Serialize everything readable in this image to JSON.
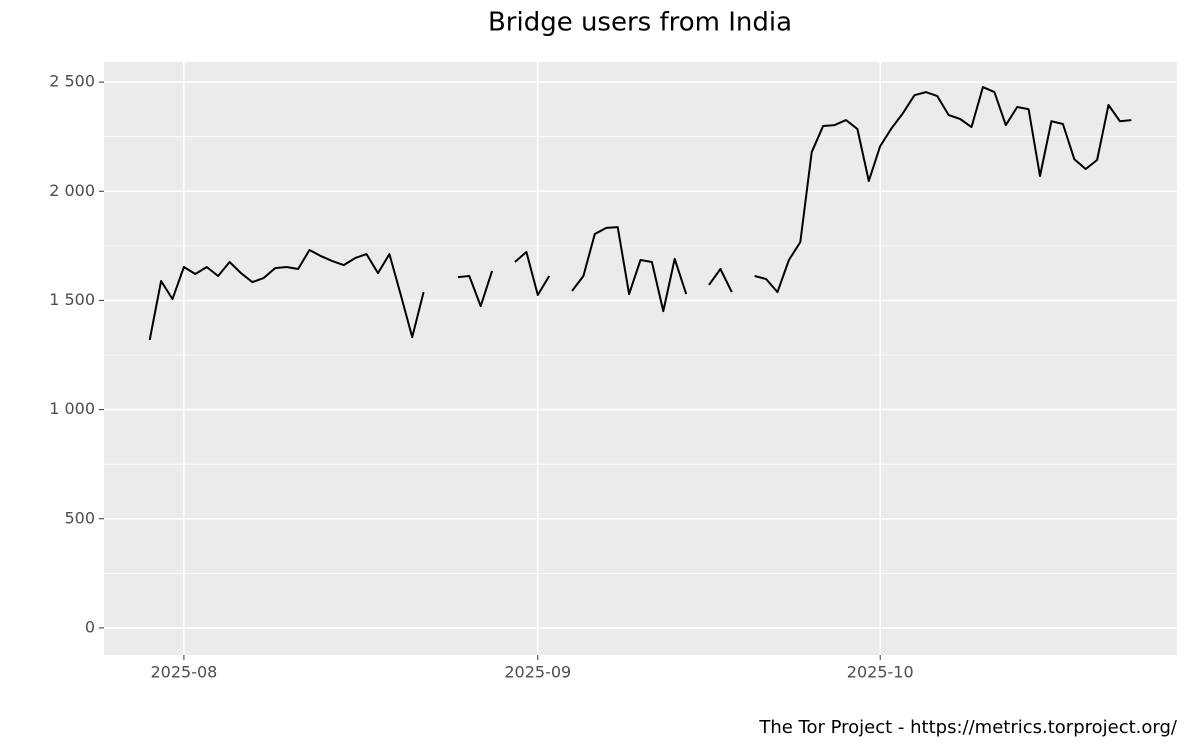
{
  "chart_data": {
    "type": "line",
    "title": "Bridge users from India",
    "caption": "The Tor Project - https://metrics.torproject.org/",
    "x": [
      "2025-07-29",
      "2025-07-30",
      "2025-07-31",
      "2025-08-01",
      "2025-08-02",
      "2025-08-03",
      "2025-08-04",
      "2025-08-05",
      "2025-08-06",
      "2025-08-07",
      "2025-08-08",
      "2025-08-09",
      "2025-08-10",
      "2025-08-11",
      "2025-08-12",
      "2025-08-13",
      "2025-08-14",
      "2025-08-15",
      "2025-08-16",
      "2025-08-17",
      "2025-08-18",
      "2025-08-19",
      "2025-08-20",
      "2025-08-21",
      "2025-08-22",
      "2025-08-23",
      "2025-08-24",
      "2025-08-25",
      "2025-08-26",
      "2025-08-27",
      "2025-08-28",
      "2025-08-29",
      "2025-08-30",
      "2025-08-31",
      "2025-09-01",
      "2025-09-02",
      "2025-09-03",
      "2025-09-04",
      "2025-09-05",
      "2025-09-06",
      "2025-09-07",
      "2025-09-08",
      "2025-09-09",
      "2025-09-10",
      "2025-09-11",
      "2025-09-12",
      "2025-09-13",
      "2025-09-14",
      "2025-09-15",
      "2025-09-16",
      "2025-09-17",
      "2025-09-18",
      "2025-09-19",
      "2025-09-20",
      "2025-09-21",
      "2025-09-22",
      "2025-09-23",
      "2025-09-24",
      "2025-09-25",
      "2025-09-26",
      "2025-09-27",
      "2025-09-28",
      "2025-09-29",
      "2025-09-30",
      "2025-10-01",
      "2025-10-02",
      "2025-10-03",
      "2025-10-04",
      "2025-10-05",
      "2025-10-06",
      "2025-10-07",
      "2025-10-08",
      "2025-10-09",
      "2025-10-10",
      "2025-10-11",
      "2025-10-12",
      "2025-10-13",
      "2025-10-14",
      "2025-10-15",
      "2025-10-16",
      "2025-10-17",
      "2025-10-18",
      "2025-10-19",
      "2025-10-20",
      "2025-10-21",
      "2025-10-22",
      "2025-10-23"
    ],
    "series": [
      {
        "name": "India",
        "color": "#000000",
        "values": [
          1319,
          1589,
          1506,
          1653,
          1621,
          1653,
          1612,
          1676,
          1625,
          1584,
          1603,
          1648,
          1653,
          1644,
          1731,
          1703,
          1680,
          1662,
          1694,
          1712,
          1625,
          1712,
          1525,
          1332,
          1538,
          null,
          null,
          1607,
          1612,
          1474,
          1635,
          null,
          1676,
          1722,
          1525,
          1612,
          null,
          1543,
          1612,
          1804,
          1832,
          1836,
          1529,
          1685,
          1676,
          1451,
          1690,
          1529,
          null,
          1571,
          1644,
          1538,
          null,
          1612,
          1598,
          1538,
          1685,
          1767,
          2179,
          2299,
          2303,
          2326,
          2285,
          2047,
          2207,
          2289,
          2358,
          2440,
          2454,
          2436,
          2349,
          2331,
          2294,
          2477,
          2454,
          2303,
          2386,
          2376,
          2070,
          2321,
          2308,
          2147,
          2102,
          2143,
          2395,
          2321,
          2326
        ]
      }
    ],
    "xlim": [
      "2025-07-25",
      "2025-10-27"
    ],
    "xticks": [
      {
        "value": "2025-08-01",
        "label": "2025-08"
      },
      {
        "value": "2025-09-01",
        "label": "2025-09"
      },
      {
        "value": "2025-10-01",
        "label": "2025-10"
      }
    ],
    "ylim": [
      -124,
      2592
    ],
    "yticks": [
      0,
      {
        "value": 500,
        "label": "500"
      },
      {
        "value": 1000,
        "label": "1 000"
      },
      {
        "value": 1500,
        "label": "1 500"
      },
      {
        "value": 2000,
        "label": "2 000"
      },
      {
        "value": 2500,
        "label": "2 500"
      }
    ],
    "grid": true
  }
}
